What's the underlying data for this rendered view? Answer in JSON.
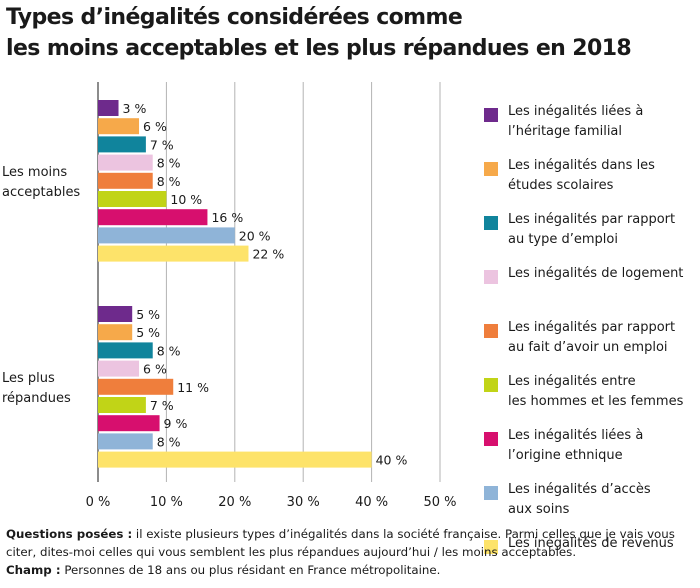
{
  "title_line1": "Types d’inégalités considérées comme",
  "title_line2": "les moins acceptables et les plus répandues en 2018",
  "chart_data": {
    "type": "bar",
    "orientation": "horizontal",
    "title": "Types d’inégalités considérées comme les moins acceptables et les plus répandues en 2018",
    "groups": [
      {
        "label_lines": [
          "Les moins",
          "acceptables"
        ],
        "values": [
          3,
          6,
          7,
          8,
          8,
          10,
          16,
          20,
          22
        ]
      },
      {
        "label_lines": [
          "Les plus",
          "répandues"
        ],
        "values": [
          5,
          5,
          8,
          6,
          11,
          7,
          9,
          8,
          40
        ]
      }
    ],
    "series": [
      {
        "name": "Les inégalités liées à l’héritage familial",
        "lines": [
          "Les inégalités liées à",
          "l’héritage familial"
        ],
        "color": "#6e2a8c"
      },
      {
        "name": "Les inégalités dans les études scolaires",
        "lines": [
          "Les inégalités dans les",
          "études scolaires"
        ],
        "color": "#f6a94a"
      },
      {
        "name": "Les inégalités par rapport au type d’emploi",
        "lines": [
          "Les inégalités par rapport",
          "au type d’emploi"
        ],
        "color": "#10849c"
      },
      {
        "name": "Les inégalités de logement",
        "lines": [
          "Les inégalités de logement"
        ],
        "color": "#ecc4e0"
      },
      {
        "name": "Les inégalités par rapport au fait d’avoir un emploi",
        "lines": [
          "Les inégalités par rapport",
          "au fait d’avoir un emploi"
        ],
        "color": "#ef7e3c"
      },
      {
        "name": "Les inégalités entre les hommes et les femmes",
        "lines": [
          "Les inégalités entre",
          "les hommes et les femmes"
        ],
        "color": "#c1d417"
      },
      {
        "name": "Les inégalités liées à l’origine ethnique",
        "lines": [
          "Les inégalités liées à",
          "l’origine ethnique"
        ],
        "color": "#d70f6e"
      },
      {
        "name": "Les inégalités d’accès aux soins",
        "lines": [
          "Les inégalités d’accès",
          "aux soins"
        ],
        "color": "#8fb4d8"
      },
      {
        "name": "Les inégalités de revenus",
        "lines": [
          "Les inégalités de revenus"
        ],
        "color": "#fde36a"
      }
    ],
    "xlim": [
      0,
      50
    ],
    "xticks": [
      0,
      10,
      20,
      30,
      40,
      50
    ],
    "tick_suffix": " %",
    "value_suffix": " %",
    "xlabel": "",
    "ylabel": "",
    "grid": true,
    "legend": "right"
  },
  "footnote": {
    "q_label": "Questions posées :",
    "q_text": " il existe plusieurs types d’inégalités dans la société française. Parmi celles que je vais vous citer, dites-moi celles qui vous semblent les plus répandues aujourd’hui / les moins acceptables.",
    "champ_label": "Champ :",
    "champ_text": " Personnes de 18 ans ou plus résidant en France métropolitaine."
  }
}
